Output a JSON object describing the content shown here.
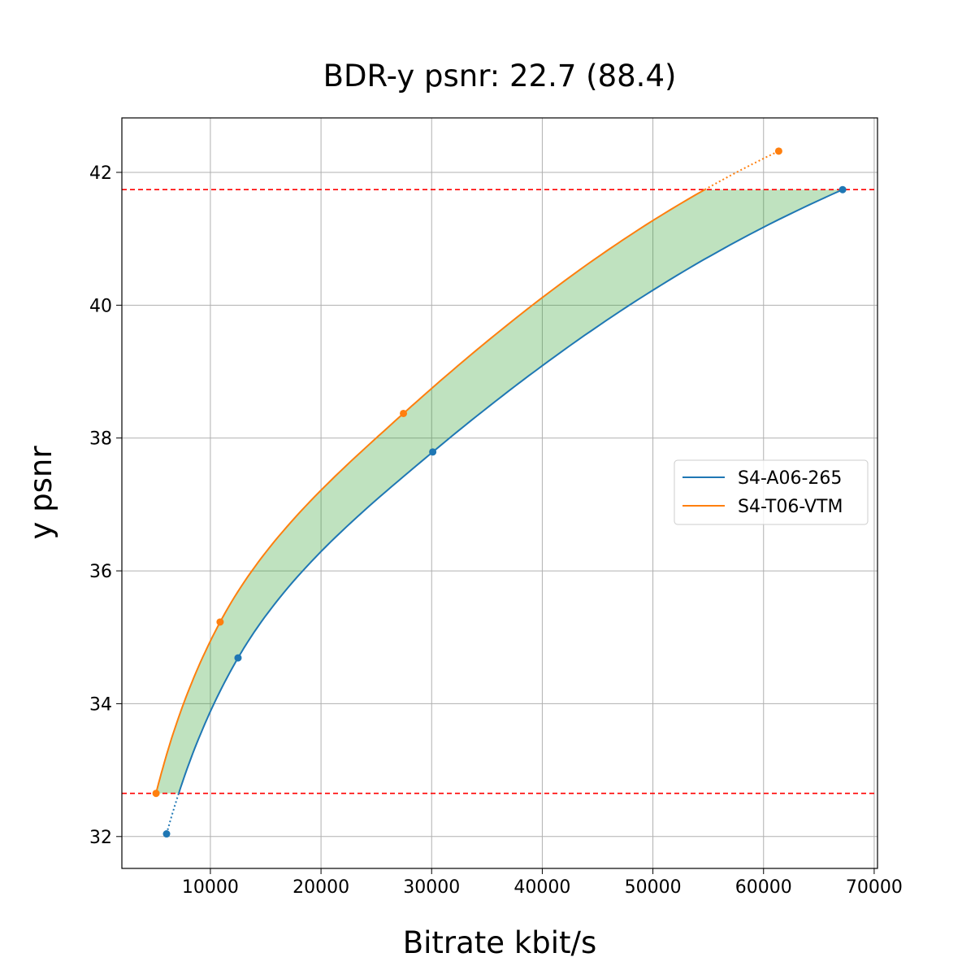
{
  "chart_data": {
    "type": "line",
    "title": "BDR-y psnr: 22.7 (88.4)",
    "xlabel": "Bitrate kbit/s",
    "ylabel": "y psnr",
    "xlim": [
      2000,
      70300
    ],
    "ylim": [
      31.52,
      42.82
    ],
    "xticks": [
      10000,
      20000,
      30000,
      40000,
      50000,
      60000,
      70000
    ],
    "yticks": [
      32,
      34,
      36,
      38,
      40,
      42
    ],
    "grid": true,
    "legend_position": "right",
    "series": [
      {
        "name": "S4-A06-265",
        "color": "#1f77b4",
        "x": [
          6040,
          12500,
          30100,
          67150
        ],
        "y": [
          32.04,
          34.69,
          37.79,
          41.74
        ]
      },
      {
        "name": "S4-T06-VTM",
        "color": "#ff7f0e",
        "x": [
          5090,
          10880,
          27450,
          61370
        ],
        "y": [
          32.65,
          35.23,
          38.37,
          42.32
        ]
      }
    ],
    "reference_lines": {
      "color": "#ff0000",
      "y": [
        41.74,
        32.65
      ]
    },
    "fill_color": "#2ca02c"
  }
}
